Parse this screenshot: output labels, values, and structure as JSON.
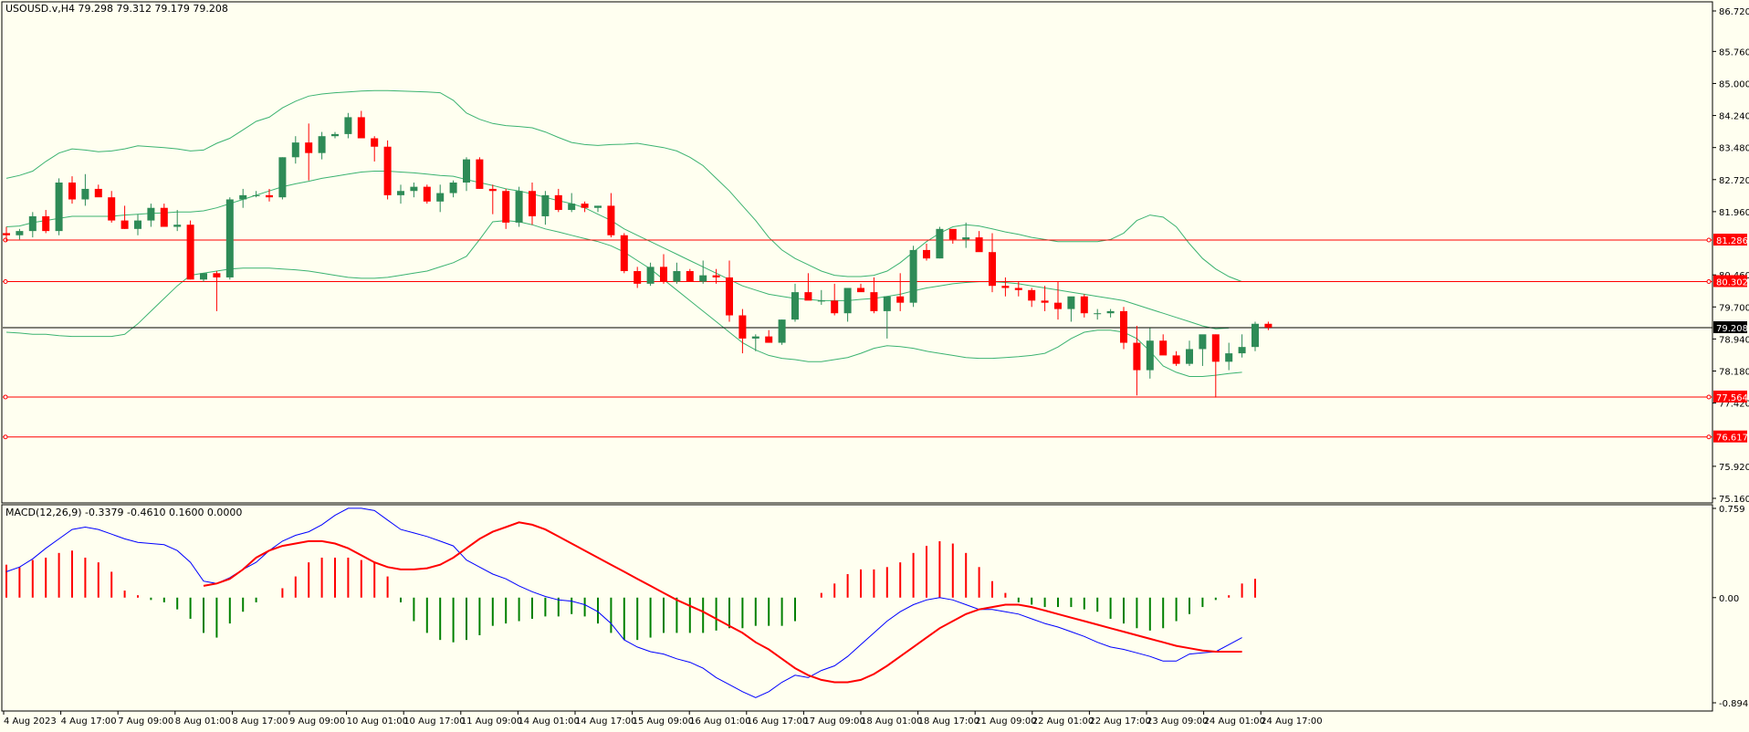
{
  "header": {
    "symbol_info": "USOUSD.v,H4  79.298 79.312 79.179 79.208",
    "indicator_info": "MACD(12,26,9) -0.3379 -0.4610 0.1600 0.0000"
  },
  "colors": {
    "background": "#fffff0",
    "bull": "#2e8b57",
    "bear": "#ff0000",
    "bands": "#3cb371",
    "hline": "#ff0000",
    "current_price_line": "#000000",
    "macd_line": "#0000ff",
    "signal_line": "#ff0000",
    "hist_positive": "#ff0000",
    "hist_negative": "#008000"
  },
  "chart_data": [
    {
      "type": "candlestick",
      "title": "USOUSD.v,H4",
      "ylim": [
        75.16,
        86.72
      ],
      "y_ticks": [
        "86.720",
        "85.760",
        "85.000",
        "84.240",
        "83.480",
        "82.720",
        "81.960",
        "80.460",
        "79.700",
        "78.940",
        "78.180",
        "77.420",
        "75.920",
        "75.160"
      ],
      "x_tick_labels": [
        "4 Aug 2023",
        "4 Aug 17:00",
        "7 Aug 09:00",
        "8 Aug 01:00",
        "8 Aug 17:00",
        "9 Aug 09:00",
        "10 Aug 01:00",
        "10 Aug 17:00",
        "11 Aug 09:00",
        "14 Aug 01:00",
        "14 Aug 17:00",
        "15 Aug 09:00",
        "16 Aug 01:00",
        "16 Aug 17:00",
        "17 Aug 09:00",
        "18 Aug 01:00",
        "18 Aug 17:00",
        "21 Aug 09:00",
        "22 Aug 01:00",
        "22 Aug 17:00",
        "23 Aug 09:00",
        "24 Aug 01:00",
        "24 Aug 17:00"
      ],
      "price_labels": [
        {
          "value": 81.286,
          "text": "81.286",
          "kind": "hline"
        },
        {
          "value": 80.302,
          "text": "80.302",
          "kind": "hline"
        },
        {
          "value": 79.208,
          "text": "79.208",
          "kind": "current"
        },
        {
          "value": 77.564,
          "text": "77.564",
          "kind": "hline"
        },
        {
          "value": 76.617,
          "text": "76.617",
          "kind": "hline"
        }
      ],
      "candles": [
        [
          81.45,
          81.6,
          81.25,
          81.4
        ],
        [
          81.4,
          81.55,
          81.3,
          81.5
        ],
        [
          81.5,
          81.95,
          81.35,
          81.85
        ],
        [
          81.85,
          82.0,
          81.45,
          81.5
        ],
        [
          81.5,
          82.75,
          81.4,
          82.65
        ],
        [
          82.65,
          82.8,
          82.15,
          82.25
        ],
        [
          82.25,
          82.85,
          82.1,
          82.5
        ],
        [
          82.5,
          82.6,
          82.35,
          82.3
        ],
        [
          82.3,
          82.45,
          81.7,
          81.75
        ],
        [
          81.75,
          82.1,
          81.55,
          81.55
        ],
        [
          81.55,
          81.9,
          81.4,
          81.75
        ],
        [
          81.75,
          82.15,
          81.6,
          82.05
        ],
        [
          82.05,
          82.15,
          81.6,
          81.6
        ],
        [
          81.6,
          82.0,
          81.5,
          81.65
        ],
        [
          81.65,
          81.75,
          80.35,
          80.35
        ],
        [
          80.35,
          80.5,
          80.3,
          80.5
        ],
        [
          80.5,
          80.55,
          79.6,
          80.4
        ],
        [
          80.4,
          82.3,
          80.35,
          82.25
        ],
        [
          82.25,
          82.5,
          82.05,
          82.35
        ],
        [
          82.35,
          82.45,
          82.3,
          82.35
        ],
        [
          82.35,
          82.5,
          82.2,
          82.3
        ],
        [
          82.3,
          83.25,
          82.25,
          83.25
        ],
        [
          83.25,
          83.75,
          83.1,
          83.6
        ],
        [
          83.6,
          84.05,
          82.7,
          83.35
        ],
        [
          83.35,
          83.85,
          83.2,
          83.75
        ],
        [
          83.75,
          83.85,
          83.7,
          83.8
        ],
        [
          83.8,
          84.3,
          83.7,
          84.2
        ],
        [
          84.2,
          84.35,
          83.7,
          83.7
        ],
        [
          83.7,
          83.75,
          83.15,
          83.5
        ],
        [
          83.5,
          83.65,
          82.25,
          82.35
        ],
        [
          82.35,
          82.6,
          82.15,
          82.45
        ],
        [
          82.45,
          82.65,
          82.3,
          82.55
        ],
        [
          82.55,
          82.6,
          82.15,
          82.2
        ],
        [
          82.2,
          82.6,
          81.95,
          82.4
        ],
        [
          82.4,
          82.7,
          82.3,
          82.65
        ],
        [
          82.65,
          83.25,
          82.45,
          83.2
        ],
        [
          83.2,
          83.25,
          82.5,
          82.5
        ],
        [
          82.5,
          82.6,
          81.9,
          82.45
        ],
        [
          82.45,
          82.5,
          81.55,
          81.7
        ],
        [
          81.7,
          82.55,
          81.6,
          82.45
        ],
        [
          82.45,
          82.65,
          81.65,
          81.85
        ],
        [
          81.85,
          82.45,
          81.65,
          82.35
        ],
        [
          82.35,
          82.5,
          81.95,
          82.0
        ],
        [
          82.0,
          82.4,
          81.95,
          82.15
        ],
        [
          82.15,
          82.2,
          81.95,
          82.05
        ],
        [
          82.05,
          82.1,
          81.95,
          82.1
        ],
        [
          82.1,
          82.4,
          81.35,
          81.4
        ],
        [
          81.4,
          81.45,
          80.5,
          80.55
        ],
        [
          80.55,
          80.65,
          80.15,
          80.25
        ],
        [
          80.25,
          80.75,
          80.2,
          80.65
        ],
        [
          80.65,
          80.95,
          80.25,
          80.3
        ],
        [
          80.3,
          80.75,
          80.25,
          80.55
        ],
        [
          80.55,
          80.6,
          80.3,
          80.3
        ],
        [
          80.3,
          80.8,
          80.25,
          80.45
        ],
        [
          80.45,
          80.6,
          80.25,
          80.4
        ],
        [
          80.4,
          80.8,
          79.35,
          79.5
        ],
        [
          79.5,
          79.65,
          78.6,
          78.95
        ],
        [
          78.95,
          79.05,
          78.65,
          79.0
        ],
        [
          79.0,
          79.15,
          78.85,
          78.85
        ],
        [
          78.85,
          79.4,
          78.8,
          79.4
        ],
        [
          79.4,
          80.25,
          79.35,
          80.05
        ],
        [
          80.05,
          80.5,
          79.95,
          79.85
        ],
        [
          79.85,
          80.1,
          79.75,
          79.85
        ],
        [
          79.85,
          80.25,
          79.5,
          79.55
        ],
        [
          79.55,
          80.15,
          79.35,
          80.15
        ],
        [
          80.15,
          80.25,
          80.1,
          80.05
        ],
        [
          80.05,
          80.4,
          79.55,
          79.6
        ],
        [
          79.6,
          79.95,
          78.95,
          79.95
        ],
        [
          79.95,
          80.5,
          79.6,
          79.8
        ],
        [
          79.8,
          81.15,
          79.7,
          81.05
        ],
        [
          81.05,
          81.2,
          80.8,
          80.85
        ],
        [
          80.85,
          81.6,
          80.85,
          81.55
        ],
        [
          81.55,
          81.5,
          81.2,
          81.3
        ],
        [
          81.3,
          81.7,
          81.1,
          81.35
        ],
        [
          81.35,
          81.5,
          81.05,
          81.0
        ],
        [
          81.0,
          81.45,
          80.05,
          80.2
        ],
        [
          80.2,
          80.4,
          79.95,
          80.15
        ],
        [
          80.15,
          80.3,
          79.95,
          80.1
        ],
        [
          80.1,
          80.15,
          79.7,
          79.85
        ],
        [
          79.85,
          80.2,
          79.6,
          79.8
        ],
        [
          79.8,
          80.3,
          79.4,
          79.65
        ],
        [
          79.65,
          79.85,
          79.35,
          79.95
        ],
        [
          79.95,
          80.0,
          79.45,
          79.55
        ],
        [
          79.55,
          79.65,
          79.4,
          79.55
        ],
        [
          79.55,
          79.65,
          79.45,
          79.6
        ],
        [
          79.6,
          79.7,
          78.7,
          78.85
        ],
        [
          78.85,
          79.25,
          77.6,
          78.2
        ],
        [
          78.2,
          79.2,
          78.0,
          78.9
        ],
        [
          78.9,
          79.05,
          78.6,
          78.55
        ],
        [
          78.55,
          78.65,
          78.3,
          78.35
        ],
        [
          78.35,
          78.9,
          78.3,
          78.7
        ],
        [
          78.7,
          79.0,
          78.3,
          79.05
        ],
        [
          79.05,
          79.05,
          77.55,
          78.4
        ],
        [
          78.4,
          78.85,
          78.2,
          78.6
        ],
        [
          78.6,
          79.05,
          78.5,
          78.75
        ],
        [
          78.75,
          79.35,
          78.65,
          79.3
        ],
        [
          79.3,
          79.35,
          79.15,
          79.21
        ]
      ],
      "bollinger": {
        "upper": [
          82.75,
          82.82,
          82.92,
          83.15,
          83.35,
          83.45,
          83.42,
          83.38,
          83.4,
          83.45,
          83.52,
          83.5,
          83.48,
          83.45,
          83.4,
          83.42,
          83.58,
          83.7,
          83.9,
          84.1,
          84.2,
          84.42,
          84.58,
          84.7,
          84.75,
          84.78,
          84.8,
          84.82,
          84.83,
          84.83,
          84.82,
          84.81,
          84.8,
          84.78,
          84.6,
          84.3,
          84.15,
          84.05,
          84.0,
          83.98,
          83.95,
          83.85,
          83.72,
          83.6,
          83.55,
          83.53,
          83.55,
          83.56,
          83.58,
          83.53,
          83.48,
          83.4,
          83.25,
          83.05,
          82.75,
          82.45,
          82.1,
          81.75,
          81.35,
          81.05,
          80.85,
          80.7,
          80.55,
          80.45,
          80.42,
          80.42,
          80.45,
          80.55,
          80.75,
          81.0,
          81.25,
          81.45,
          81.6,
          81.65,
          81.62,
          81.55,
          81.48,
          81.42,
          81.35,
          81.3,
          81.25,
          81.25,
          81.25,
          81.25,
          81.3,
          81.45,
          81.75,
          81.88,
          81.83,
          81.6,
          81.2,
          80.85,
          80.6,
          80.42,
          80.3
        ],
        "middle": [
          81.6,
          81.62,
          81.7,
          81.75,
          81.8,
          81.85,
          81.85,
          81.85,
          81.85,
          81.88,
          81.9,
          81.92,
          81.93,
          81.95,
          81.95,
          81.98,
          82.05,
          82.15,
          82.25,
          82.35,
          82.45,
          82.55,
          82.62,
          82.68,
          82.75,
          82.8,
          82.85,
          82.9,
          82.92,
          82.92,
          82.9,
          82.88,
          82.85,
          82.82,
          82.8,
          82.72,
          82.65,
          82.58,
          82.5,
          82.45,
          82.38,
          82.3,
          82.22,
          82.15,
          82.05,
          81.9,
          81.75,
          81.55,
          81.4,
          81.25,
          81.1,
          80.95,
          80.8,
          80.65,
          80.5,
          80.35,
          80.2,
          80.1,
          80.0,
          79.95,
          79.9,
          79.88,
          79.85,
          79.85,
          79.85,
          79.88,
          79.9,
          79.95,
          80.0,
          80.08,
          80.15,
          80.2,
          80.25,
          80.28,
          80.3,
          80.3,
          80.28,
          80.25,
          80.2,
          80.15,
          80.1,
          80.05,
          80.0,
          79.95,
          79.9,
          79.85,
          79.75,
          79.65,
          79.55,
          79.45,
          79.35,
          79.25,
          79.18,
          79.2
        ],
        "lower": [
          79.1,
          79.08,
          79.05,
          79.05,
          79.02,
          79.0,
          79.0,
          79.0,
          79.0,
          79.05,
          79.3,
          79.6,
          79.9,
          80.2,
          80.45,
          80.5,
          80.55,
          80.6,
          80.62,
          80.62,
          80.62,
          80.6,
          80.58,
          80.55,
          80.5,
          80.45,
          80.4,
          80.38,
          80.38,
          80.4,
          80.45,
          80.5,
          80.55,
          80.65,
          80.75,
          80.9,
          81.3,
          81.72,
          81.75,
          81.72,
          81.65,
          81.55,
          81.48,
          81.4,
          81.32,
          81.25,
          81.15,
          81.0,
          80.8,
          80.6,
          80.35,
          80.1,
          79.85,
          79.6,
          79.35,
          79.1,
          78.85,
          78.68,
          78.55,
          78.48,
          78.45,
          78.4,
          78.4,
          78.45,
          78.5,
          78.6,
          78.72,
          78.78,
          78.76,
          78.72,
          78.65,
          78.6,
          78.55,
          78.5,
          78.48,
          78.48,
          78.5,
          78.52,
          78.55,
          78.6,
          78.75,
          78.95,
          79.1,
          79.15,
          79.15,
          79.1,
          78.95,
          78.65,
          78.3,
          78.15,
          78.05,
          78.05,
          78.08,
          78.12,
          78.15
        ]
      }
    },
    {
      "type": "macd",
      "title": "MACD(12,26,9)",
      "ylim": [
        -0.8945,
        0.759
      ],
      "y_ticks": [
        "0.759",
        "0.00",
        "-0.8945"
      ],
      "histogram": [
        0.28,
        0.26,
        0.32,
        0.34,
        0.38,
        0.4,
        0.34,
        0.3,
        0.22,
        0.06,
        0.02,
        -0.02,
        -0.04,
        -0.1,
        -0.18,
        -0.3,
        -0.34,
        -0.22,
        -0.12,
        -0.04,
        0.0,
        0.08,
        0.18,
        0.3,
        0.34,
        0.34,
        0.34,
        0.32,
        0.3,
        0.18,
        -0.04,
        -0.2,
        -0.3,
        -0.36,
        -0.38,
        -0.36,
        -0.32,
        -0.24,
        -0.22,
        -0.2,
        -0.18,
        -0.16,
        -0.16,
        -0.14,
        -0.16,
        -0.22,
        -0.3,
        -0.36,
        -0.36,
        -0.34,
        -0.3,
        -0.3,
        -0.3,
        -0.3,
        -0.28,
        -0.26,
        -0.26,
        -0.24,
        -0.24,
        -0.24,
        -0.2,
        0.0,
        0.04,
        0.12,
        0.2,
        0.24,
        0.24,
        0.26,
        0.3,
        0.38,
        0.44,
        0.48,
        0.46,
        0.38,
        0.26,
        0.14,
        0.04,
        -0.04,
        -0.06,
        -0.08,
        -0.08,
        -0.08,
        -0.1,
        -0.12,
        -0.18,
        -0.22,
        -0.26,
        -0.28,
        -0.26,
        -0.2,
        -0.14,
        -0.08,
        -0.02,
        0.02,
        0.12,
        0.16
      ],
      "macd": [
        0.22,
        0.26,
        0.33,
        0.42,
        0.5,
        0.58,
        0.6,
        0.58,
        0.54,
        0.5,
        0.47,
        0.46,
        0.45,
        0.4,
        0.3,
        0.14,
        0.12,
        0.17,
        0.24,
        0.3,
        0.4,
        0.48,
        0.53,
        0.56,
        0.62,
        0.7,
        0.76,
        0.76,
        0.74,
        0.66,
        0.58,
        0.55,
        0.52,
        0.48,
        0.44,
        0.32,
        0.26,
        0.2,
        0.16,
        0.1,
        0.05,
        0.01,
        -0.02,
        -0.03,
        -0.06,
        -0.12,
        -0.22,
        -0.36,
        -0.42,
        -0.46,
        -0.48,
        -0.52,
        -0.55,
        -0.6,
        -0.68,
        -0.74,
        -0.8,
        -0.85,
        -0.8,
        -0.72,
        -0.66,
        -0.68,
        -0.62,
        -0.58,
        -0.5,
        -0.4,
        -0.3,
        -0.2,
        -0.12,
        -0.06,
        -0.02,
        0.0,
        -0.02,
        -0.06,
        -0.1,
        -0.1,
        -0.12,
        -0.14,
        -0.18,
        -0.22,
        -0.25,
        -0.29,
        -0.33,
        -0.38,
        -0.42,
        -0.44,
        -0.47,
        -0.5,
        -0.54,
        -0.54,
        -0.48,
        -0.47,
        -0.46,
        -0.4,
        -0.34
      ],
      "signal": [
        0.1,
        0.12,
        0.16,
        0.24,
        0.34,
        0.4,
        0.44,
        0.46,
        0.48,
        0.48,
        0.46,
        0.42,
        0.36,
        0.3,
        0.26,
        0.24,
        0.24,
        0.25,
        0.28,
        0.34,
        0.42,
        0.5,
        0.56,
        0.6,
        0.64,
        0.62,
        0.58,
        0.52,
        0.46,
        0.4,
        0.34,
        0.28,
        0.22,
        0.16,
        0.1,
        0.04,
        -0.02,
        -0.07,
        -0.12,
        -0.18,
        -0.24,
        -0.3,
        -0.38,
        -0.44,
        -0.52,
        -0.6,
        -0.66,
        -0.7,
        -0.72,
        -0.72,
        -0.7,
        -0.65,
        -0.58,
        -0.5,
        -0.42,
        -0.34,
        -0.26,
        -0.2,
        -0.14,
        -0.1,
        -0.08,
        -0.06,
        -0.06,
        -0.08,
        -0.11,
        -0.14,
        -0.17,
        -0.2,
        -0.23,
        -0.26,
        -0.29,
        -0.32,
        -0.35,
        -0.38,
        -0.41,
        -0.43,
        -0.45,
        -0.46,
        -0.46,
        -0.46
      ]
    }
  ]
}
